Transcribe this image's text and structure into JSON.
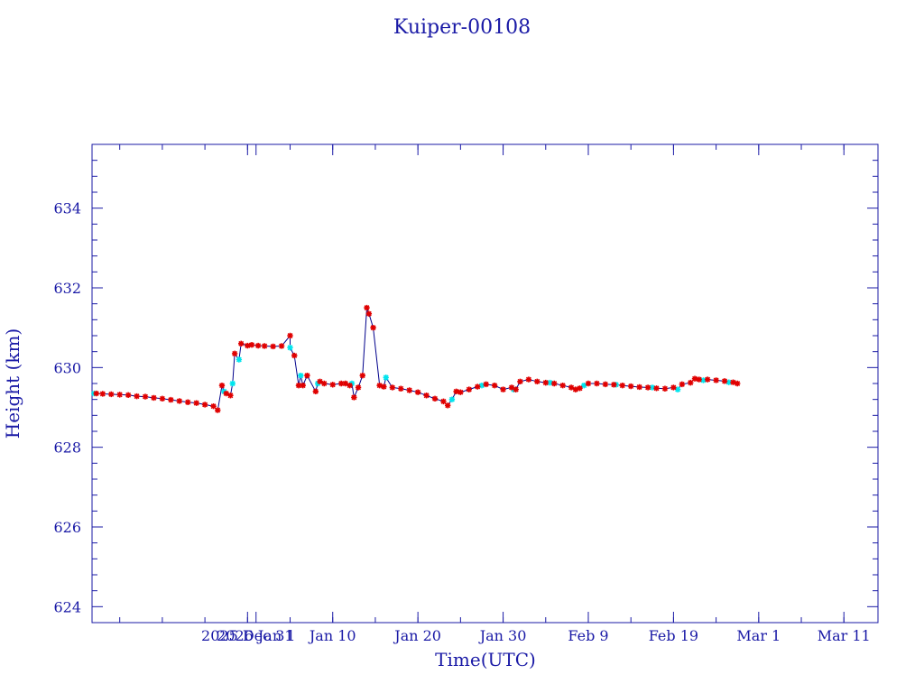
{
  "chart_data": {
    "type": "scatter",
    "title": "Kuiper-00108",
    "xlabel": "Time(UTC)",
    "ylabel": "Height (km)",
    "ylim": [
      623.6,
      635.6
    ],
    "x_is_date": true,
    "xlim": [
      "2025-12-12T18:00",
      "2026-03-15T00:00"
    ],
    "xticks": [
      {
        "date": "2025-12-31",
        "label": "2025 Dec 31"
      },
      {
        "date": "2026-01-01",
        "label": "2026 Jan  1"
      },
      {
        "date": "2026-01-10",
        "label": "Jan 10"
      },
      {
        "date": "2026-01-20",
        "label": "Jan 20"
      },
      {
        "date": "2026-01-30",
        "label": "Jan 30"
      },
      {
        "date": "2026-02-09",
        "label": "Feb  9"
      },
      {
        "date": "2026-02-19",
        "label": "Feb 19"
      },
      {
        "date": "2026-03-01",
        "label": "Mar  1"
      },
      {
        "date": "2026-03-11",
        "label": "Mar 11"
      }
    ],
    "yticks": [
      624,
      626,
      628,
      630,
      632,
      634
    ],
    "grid": false,
    "colors": {
      "frame": "#1a1aa6",
      "line": "#00008b",
      "red": "#e00000",
      "cyan": "#00e5ee"
    },
    "series": [
      {
        "marker": "red-star",
        "points": [
          [
            "2025-12-13T06:00",
            629.35
          ],
          [
            "2025-12-14T00:00",
            629.34
          ],
          [
            "2025-12-15T00:00",
            629.33
          ],
          [
            "2025-12-16T00:00",
            629.32
          ],
          [
            "2025-12-17T00:00",
            629.31
          ],
          [
            "2025-12-18T00:00",
            629.28
          ],
          [
            "2025-12-19T00:00",
            629.27
          ],
          [
            "2025-12-20T00:00",
            629.24
          ],
          [
            "2025-12-21T00:00",
            629.22
          ],
          [
            "2025-12-22T00:00",
            629.19
          ],
          [
            "2025-12-23T00:00",
            629.16
          ],
          [
            "2025-12-24T00:00",
            629.13
          ],
          [
            "2025-12-25T00:00",
            629.11
          ],
          [
            "2025-12-26T00:00",
            629.07
          ],
          [
            "2025-12-27T00:00",
            629.03
          ],
          [
            "2025-12-27T12:00",
            628.93
          ],
          [
            "2025-12-28T00:00",
            629.55
          ],
          [
            "2025-12-28T12:00",
            629.35
          ],
          [
            "2025-12-29T00:00",
            629.3
          ],
          [
            "2025-12-29T12:00",
            630.35
          ],
          [
            "2025-12-30T06:00",
            630.6
          ],
          [
            "2025-12-31T00:00",
            630.55
          ],
          [
            "2025-12-31T12:00",
            630.57
          ],
          [
            "2026-01-01T06:00",
            630.55
          ],
          [
            "2026-01-02T00:00",
            630.54
          ],
          [
            "2026-01-03T00:00",
            630.53
          ],
          [
            "2026-01-04T00:00",
            630.54
          ],
          [
            "2026-01-05T00:00",
            630.8
          ],
          [
            "2026-01-05T12:00",
            630.3
          ],
          [
            "2026-01-06T00:00",
            629.55
          ],
          [
            "2026-01-06T12:00",
            629.55
          ],
          [
            "2026-01-07T00:00",
            629.8
          ],
          [
            "2026-01-08T00:00",
            629.4
          ],
          [
            "2026-01-08T12:00",
            629.65
          ],
          [
            "2026-01-09T00:00",
            629.6
          ],
          [
            "2026-01-10T00:00",
            629.57
          ],
          [
            "2026-01-11T00:00",
            629.6
          ],
          [
            "2026-01-11T12:00",
            629.6
          ],
          [
            "2026-01-12T00:00",
            629.55
          ],
          [
            "2026-01-12T12:00",
            629.25
          ],
          [
            "2026-01-13T00:00",
            629.5
          ],
          [
            "2026-01-13T12:00",
            629.8
          ],
          [
            "2026-01-14T00:00",
            631.5
          ],
          [
            "2026-01-14T06:00",
            631.35
          ],
          [
            "2026-01-14T18:00",
            631.0
          ],
          [
            "2026-01-15T12:00",
            629.55
          ],
          [
            "2026-01-16T00:00",
            629.52
          ],
          [
            "2026-01-17T00:00",
            629.5
          ],
          [
            "2026-01-18T00:00",
            629.47
          ],
          [
            "2026-01-19T00:00",
            629.43
          ],
          [
            "2026-01-20T00:00",
            629.38
          ],
          [
            "2026-01-21T00:00",
            629.3
          ],
          [
            "2026-01-22T00:00",
            629.22
          ],
          [
            "2026-01-23T00:00",
            629.15
          ],
          [
            "2026-01-23T12:00",
            629.05
          ],
          [
            "2026-01-24T12:00",
            629.4
          ],
          [
            "2026-01-25T00:00",
            629.38
          ],
          [
            "2026-01-26T00:00",
            629.45
          ],
          [
            "2026-01-27T00:00",
            629.52
          ],
          [
            "2026-01-28T00:00",
            629.58
          ],
          [
            "2026-01-29T00:00",
            629.55
          ],
          [
            "2026-01-30T00:00",
            629.45
          ],
          [
            "2026-01-31T00:00",
            629.5
          ],
          [
            "2026-01-31T12:00",
            629.45
          ],
          [
            "2026-02-01T00:00",
            629.65
          ],
          [
            "2026-02-02T00:00",
            629.7
          ],
          [
            "2026-02-03T00:00",
            629.65
          ],
          [
            "2026-02-04T00:00",
            629.62
          ],
          [
            "2026-02-05T00:00",
            629.6
          ],
          [
            "2026-02-06T00:00",
            629.55
          ],
          [
            "2026-02-07T00:00",
            629.5
          ],
          [
            "2026-02-07T12:00",
            629.45
          ],
          [
            "2026-02-08T00:00",
            629.48
          ],
          [
            "2026-02-09T00:00",
            629.6
          ],
          [
            "2026-02-10T00:00",
            629.6
          ],
          [
            "2026-02-11T00:00",
            629.58
          ],
          [
            "2026-02-12T00:00",
            629.57
          ],
          [
            "2026-02-13T00:00",
            629.55
          ],
          [
            "2026-02-14T00:00",
            629.53
          ],
          [
            "2026-02-15T00:00",
            629.51
          ],
          [
            "2026-02-16T00:00",
            629.5
          ],
          [
            "2026-02-17T00:00",
            629.48
          ],
          [
            "2026-02-18T00:00",
            629.47
          ],
          [
            "2026-02-19T00:00",
            629.5
          ],
          [
            "2026-02-20T00:00",
            629.58
          ],
          [
            "2026-02-21T00:00",
            629.62
          ],
          [
            "2026-02-21T12:00",
            629.72
          ],
          [
            "2026-02-22T00:00",
            629.7
          ],
          [
            "2026-02-23T00:00",
            629.7
          ],
          [
            "2026-02-24T00:00",
            629.68
          ],
          [
            "2026-02-25T00:00",
            629.66
          ],
          [
            "2026-02-26T00:00",
            629.63
          ],
          [
            "2026-02-26T12:00",
            629.6
          ]
        ]
      },
      {
        "marker": "cyan-star",
        "points": [
          [
            "2025-12-13T00:00",
            629.35
          ],
          [
            "2025-12-28T06:00",
            629.4
          ],
          [
            "2025-12-29T06:00",
            629.6
          ],
          [
            "2025-12-30T00:00",
            630.2
          ],
          [
            "2026-01-05T00:00",
            630.5
          ],
          [
            "2026-01-06T06:00",
            629.8
          ],
          [
            "2026-01-08T06:00",
            629.6
          ],
          [
            "2026-01-12T06:00",
            629.6
          ],
          [
            "2026-01-16T06:00",
            629.75
          ],
          [
            "2026-01-24T00:00",
            629.2
          ],
          [
            "2026-01-27T12:00",
            629.55
          ],
          [
            "2026-01-31T06:00",
            629.45
          ],
          [
            "2026-02-04T12:00",
            629.62
          ],
          [
            "2026-02-08T12:00",
            629.55
          ],
          [
            "2026-02-12T06:00",
            629.57
          ],
          [
            "2026-02-16T12:00",
            629.5
          ],
          [
            "2026-02-19T12:00",
            629.45
          ],
          [
            "2026-02-22T12:00",
            629.68
          ],
          [
            "2026-02-25T12:00",
            629.63
          ]
        ]
      }
    ]
  }
}
